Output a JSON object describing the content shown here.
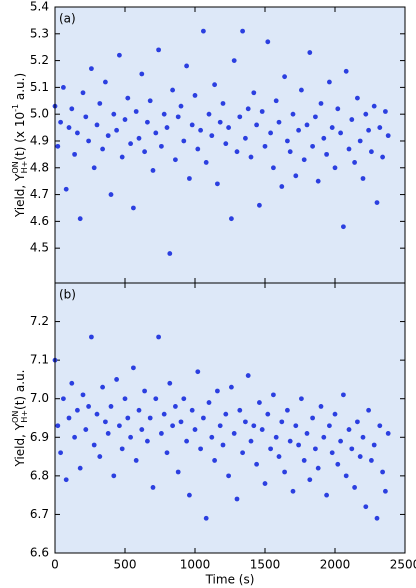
{
  "chart_data": [
    {
      "type": "scatter",
      "panel_label": "(a)",
      "ylabel_parts": [
        "Yield, Y",
        "ON",
        "H+",
        "(t) (x 10",
        "-1",
        " a.u.)"
      ],
      "color": "#2b3fe0",
      "background": "#dde8f8",
      "xlim": [
        0,
        2500
      ],
      "xticks": [
        0,
        500,
        1000,
        1500,
        2000,
        2500
      ],
      "ylim": [
        4.37,
        5.4
      ],
      "yticks": [
        4.5,
        4.6,
        4.7,
        4.8,
        4.9,
        {
          "value": 5,
          "label": "5.0"
        },
        5.1,
        5.2,
        5.3,
        5.4
      ],
      "x": [
        0,
        20,
        40,
        60,
        80,
        100,
        120,
        140,
        160,
        180,
        200,
        220,
        240,
        260,
        280,
        300,
        320,
        340,
        360,
        380,
        400,
        420,
        440,
        460,
        480,
        500,
        520,
        540,
        560,
        580,
        600,
        620,
        640,
        660,
        680,
        700,
        720,
        740,
        760,
        780,
        800,
        820,
        840,
        860,
        880,
        900,
        920,
        940,
        960,
        980,
        1000,
        1020,
        1040,
        1060,
        1080,
        1100,
        1120,
        1140,
        1160,
        1180,
        1200,
        1220,
        1240,
        1260,
        1280,
        1300,
        1320,
        1340,
        1360,
        1380,
        1400,
        1420,
        1440,
        1460,
        1480,
        1500,
        1520,
        1540,
        1560,
        1580,
        1600,
        1620,
        1640,
        1660,
        1680,
        1700,
        1720,
        1740,
        1760,
        1780,
        1800,
        1820,
        1840,
        1860,
        1880,
        1900,
        1920,
        1940,
        1960,
        1980,
        2000,
        2020,
        2040,
        2060,
        2080,
        2100,
        2120,
        2140,
        2160,
        2180,
        2200,
        2220,
        2240,
        2260,
        2280,
        2300,
        2320,
        2340,
        2360,
        2380
      ],
      "values": [
        5.03,
        4.88,
        4.97,
        5.1,
        4.72,
        4.95,
        5.02,
        4.85,
        4.93,
        4.61,
        5.08,
        4.99,
        4.9,
        5.17,
        4.8,
        4.96,
        5.04,
        4.87,
        5.12,
        4.92,
        4.7,
        5.0,
        4.94,
        5.22,
        4.84,
        4.98,
        5.06,
        4.89,
        4.65,
        5.01,
        4.91,
        5.15,
        4.86,
        4.97,
        5.05,
        4.79,
        4.93,
        5.24,
        4.88,
        5.0,
        4.95,
        4.48,
        5.09,
        4.83,
        4.99,
        5.03,
        4.9,
        5.18,
        4.76,
        4.96,
        5.07,
        4.87,
        4.94,
        5.31,
        4.82,
        5.0,
        4.92,
        5.11,
        4.74,
        4.97,
        5.04,
        4.89,
        4.95,
        4.61,
        5.2,
        4.86,
        4.99,
        5.31,
        4.91,
        5.02,
        4.84,
        5.08,
        4.96,
        4.66,
        5.01,
        4.88,
        5.27,
        4.93,
        4.8,
        5.05,
        4.97,
        4.73,
        5.14,
        4.9,
        4.86,
        5.0,
        4.77,
        4.94,
        5.09,
        4.83,
        4.96,
        5.23,
        4.88,
        4.99,
        4.75,
        5.04,
        4.91,
        4.85,
        5.12,
        4.95,
        4.8,
        5.02,
        4.93,
        4.58,
        5.16,
        4.87,
        4.98,
        4.82,
        5.06,
        4.9,
        4.76,
        5.0,
        4.94,
        4.86,
        5.03,
        4.67,
        4.95,
        4.84,
        5.01,
        4.92
      ]
    },
    {
      "type": "scatter",
      "panel_label": "(b)",
      "ylabel_parts": [
        "Yield, Y",
        "ON",
        "H+",
        "(t) a.u."
      ],
      "xlabel": "Time (s)",
      "color": "#2b3fe0",
      "background": "#dde8f8",
      "xlim": [
        0,
        2500
      ],
      "xticks": [
        0,
        500,
        1000,
        1500,
        2000,
        2500
      ],
      "ylim": [
        6.6,
        7.3
      ],
      "yticks": [
        6.6,
        6.7,
        6.8,
        6.9,
        {
          "value": 7,
          "label": "7.0"
        },
        7.1,
        7.2
      ],
      "x": [
        0,
        20,
        40,
        60,
        80,
        100,
        120,
        140,
        160,
        180,
        200,
        220,
        240,
        260,
        280,
        300,
        320,
        340,
        360,
        380,
        400,
        420,
        440,
        460,
        480,
        500,
        520,
        540,
        560,
        580,
        600,
        620,
        640,
        660,
        680,
        700,
        720,
        740,
        760,
        780,
        800,
        820,
        840,
        860,
        880,
        900,
        920,
        940,
        960,
        980,
        1000,
        1020,
        1040,
        1060,
        1080,
        1100,
        1120,
        1140,
        1160,
        1180,
        1200,
        1220,
        1240,
        1260,
        1280,
        1300,
        1320,
        1340,
        1360,
        1380,
        1400,
        1420,
        1440,
        1460,
        1480,
        1500,
        1520,
        1540,
        1560,
        1580,
        1600,
        1620,
        1640,
        1660,
        1680,
        1700,
        1720,
        1740,
        1760,
        1780,
        1800,
        1820,
        1840,
        1860,
        1880,
        1900,
        1920,
        1940,
        1960,
        1980,
        2000,
        2020,
        2040,
        2060,
        2080,
        2100,
        2120,
        2140,
        2160,
        2180,
        2200,
        2220,
        2240,
        2260,
        2280,
        2300,
        2320,
        2340,
        2360,
        2380
      ],
      "values": [
        7.1,
        6.93,
        6.86,
        7.0,
        6.79,
        6.95,
        7.04,
        6.9,
        6.97,
        6.82,
        7.01,
        6.92,
        6.98,
        7.16,
        6.88,
        6.96,
        6.85,
        7.03,
        6.94,
        6.91,
        6.98,
        6.8,
        7.05,
        6.93,
        6.87,
        7.0,
        6.95,
        6.9,
        7.08,
        6.84,
        6.97,
        6.92,
        7.02,
        6.89,
        6.95,
        6.77,
        7.0,
        7.16,
        6.91,
        6.96,
        6.86,
        7.04,
        6.93,
        6.98,
        6.81,
        6.94,
        7.0,
        6.89,
        6.75,
        6.97,
        6.92,
        7.07,
        6.87,
        6.95,
        6.69,
        6.99,
        6.9,
        6.84,
        7.02,
        6.93,
        6.88,
        6.96,
        6.8,
        7.03,
        6.91,
        6.74,
        6.97,
        6.86,
        6.94,
        7.06,
        6.89,
        6.93,
        6.83,
        6.99,
        6.92,
        6.78,
        6.96,
        6.87,
        7.01,
        6.9,
        6.85,
        6.94,
        6.81,
        6.97,
        6.89,
        6.76,
        6.93,
        6.88,
        7.0,
        6.84,
        6.91,
        6.79,
        6.95,
        6.87,
        6.82,
        6.98,
        6.9,
        6.75,
        6.93,
        6.86,
        6.96,
        6.83,
        6.89,
        7.01,
        6.8,
        6.92,
        6.87,
        6.77,
        6.94,
        6.85,
        6.9,
        6.72,
        6.97,
        6.84,
        6.88,
        6.69,
        6.93,
        6.81,
        6.76,
        6.91
      ]
    }
  ]
}
